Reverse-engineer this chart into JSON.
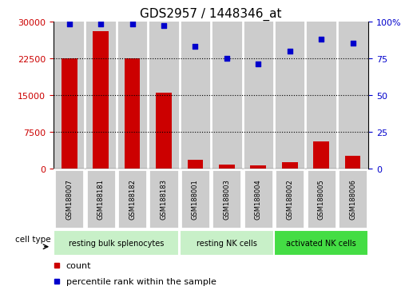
{
  "title": "GDS2957 / 1448346_at",
  "samples": [
    "GSM188007",
    "GSM188181",
    "GSM188182",
    "GSM188183",
    "GSM188001",
    "GSM188003",
    "GSM188004",
    "GSM188002",
    "GSM188005",
    "GSM188006"
  ],
  "counts": [
    22500,
    28000,
    22500,
    15500,
    1800,
    700,
    600,
    1200,
    5500,
    2500
  ],
  "percentiles": [
    98,
    98,
    98,
    97,
    83,
    75,
    71,
    80,
    88,
    85
  ],
  "cell_type_groups": [
    {
      "label": "resting bulk splenocytes",
      "start": 0,
      "end": 4,
      "color": "#C8F0C8"
    },
    {
      "label": "resting NK cells",
      "start": 4,
      "end": 7,
      "color": "#C8F0C8"
    },
    {
      "label": "activated NK cells",
      "start": 7,
      "end": 10,
      "color": "#44DD44"
    }
  ],
  "bar_color": "#CC0000",
  "scatter_color": "#0000CC",
  "ylim_left": [
    0,
    30000
  ],
  "ylim_right": [
    0,
    100
  ],
  "yticks_left": [
    0,
    7500,
    15000,
    22500,
    30000
  ],
  "ytick_labels_left": [
    "0",
    "7500",
    "15000",
    "22500",
    "30000"
  ],
  "yticks_right": [
    0,
    25,
    50,
    75,
    100
  ],
  "ytick_labels_right": [
    "0",
    "25",
    "50",
    "75",
    "100%"
  ],
  "cell_type_label": "cell type",
  "legend_count_label": "count",
  "legend_pct_label": "percentile rank within the sample",
  "col_bg": "#CCCCCC",
  "plot_bg": "#FFFFFF",
  "separator_color": "#FFFFFF"
}
